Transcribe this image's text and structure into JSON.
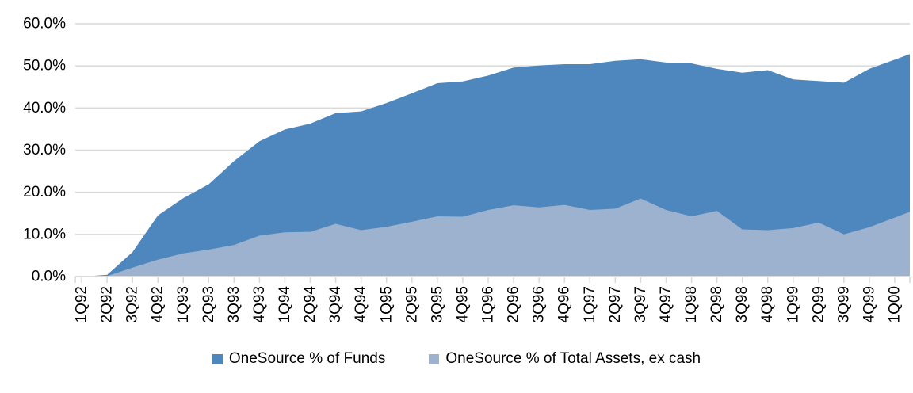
{
  "chart_data": {
    "type": "area",
    "title": "",
    "xlabel": "",
    "ylabel": "",
    "overlap_mode": "overlapping-from-zero",
    "grid": true,
    "legend_position": "bottom",
    "ylim": [
      0,
      60
    ],
    "ytick_step": 10,
    "ytick_labels": [
      "0.0%",
      "10.0%",
      "20.0%",
      "30.0%",
      "40.0%",
      "50.0%",
      "60.0%"
    ],
    "axis_color": "#D9D9D9",
    "text_color": "#000000",
    "background_color": "#FFFFFF",
    "categories": [
      "1Q92",
      "2Q92",
      "3Q92",
      "4Q92",
      "1Q93",
      "2Q93",
      "3Q93",
      "4Q93",
      "1Q94",
      "2Q94",
      "3Q94",
      "4Q94",
      "1Q95",
      "2Q95",
      "3Q95",
      "4Q95",
      "1Q96",
      "2Q96",
      "3Q96",
      "4Q96",
      "1Q97",
      "2Q97",
      "3Q97",
      "4Q97",
      "1Q98",
      "2Q98",
      "3Q98",
      "4Q98",
      "1Q99",
      "2Q99",
      "3Q99",
      "4Q99",
      "1Q00"
    ],
    "series": [
      {
        "name": "OneSource % of Funds",
        "color": "#4E87BE",
        "values": [
          0.0,
          0.4,
          5.8,
          14.5,
          18.6,
          21.9,
          27.4,
          32.1,
          34.9,
          36.3,
          38.8,
          39.2,
          41.2,
          43.5,
          45.9,
          46.3,
          47.7,
          49.6,
          50.1,
          50.4,
          50.4,
          51.2,
          51.6,
          50.8,
          50.6,
          49.3,
          48.4,
          49.0,
          46.8,
          46.4,
          46.0,
          49.3,
          51.5
        ]
      },
      {
        "name": "OneSource % of Total Assets, ex cash",
        "color": "#9DB2CE",
        "values": [
          0.0,
          0.1,
          2.1,
          4.0,
          5.5,
          6.4,
          7.5,
          9.7,
          10.5,
          10.6,
          12.5,
          11.0,
          11.8,
          13.0,
          14.3,
          14.2,
          15.8,
          16.9,
          16.4,
          17.0,
          15.8,
          16.1,
          18.5,
          15.8,
          14.3,
          15.6,
          11.2,
          11.0,
          11.5,
          12.8,
          10.0,
          11.7,
          14.0
        ]
      }
    ]
  }
}
